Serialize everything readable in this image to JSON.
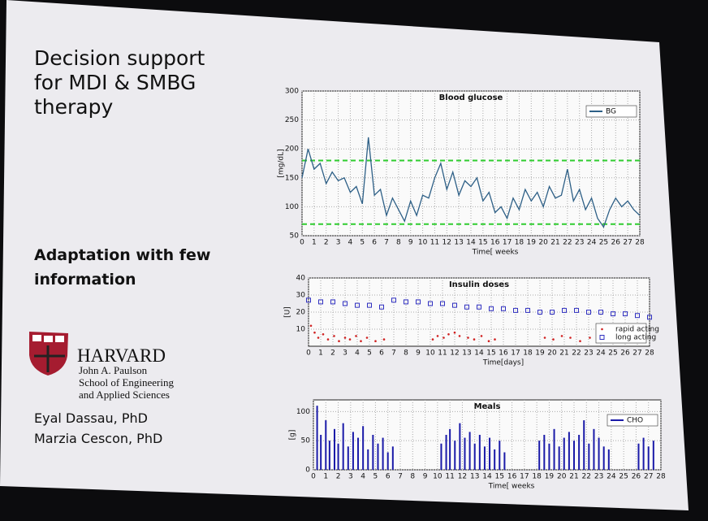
{
  "slide": {
    "title": [
      "Decision support",
      "for MDI & SMBG",
      "therapy"
    ],
    "subtitle": [
      "Adaptation with few",
      "information"
    ],
    "institution": "HARVARD",
    "school": [
      "John A. Paulson",
      "School of Engineering",
      "and Applied Sciences"
    ],
    "authors": [
      "Eyal Dassau, PhD",
      "Marzia Cescon, PhD"
    ]
  },
  "chart_data": [
    {
      "type": "line",
      "title": "Blood glucose",
      "ylabel": "[mg/dL]",
      "xlabel": "Time[ weeks",
      "xlim": [
        0,
        28
      ],
      "xticks": [
        0,
        1,
        2,
        3,
        4,
        5,
        6,
        7,
        8,
        9,
        10,
        11,
        12,
        13,
        14,
        15,
        16,
        17,
        18,
        19,
        20,
        21,
        22,
        23,
        24,
        25,
        26,
        27,
        28
      ],
      "ylim": [
        50,
        300
      ],
      "yticks": [
        50,
        100,
        150,
        200,
        250,
        300
      ],
      "grid": true,
      "legend": "upper right",
      "reference_lines": [
        {
          "value": 180,
          "color": "#2fcc2f"
        },
        {
          "value": 70,
          "color": "#2fcc2f"
        }
      ],
      "series": [
        {
          "name": "BG",
          "color": "#2d5f86",
          "x": [
            0,
            0.5,
            1,
            1.5,
            2,
            2.5,
            3,
            3.5,
            4,
            4.5,
            5,
            5.5,
            6,
            6.5,
            7,
            7.5,
            8,
            8.5,
            9,
            9.5,
            10,
            10.5,
            11,
            11.5,
            12,
            12.5,
            13,
            13.5,
            14,
            14.5,
            15,
            15.5,
            16,
            16.5,
            17,
            17.5,
            18,
            18.5,
            19,
            19.5,
            20,
            20.5,
            21,
            21.5,
            22,
            22.5,
            23,
            23.5,
            24,
            24.5,
            25,
            25.5,
            26,
            26.5,
            27,
            27.5,
            28
          ],
          "values": [
            150,
            200,
            165,
            175,
            140,
            160,
            145,
            150,
            125,
            135,
            105,
            220,
            120,
            130,
            85,
            115,
            95,
            75,
            110,
            85,
            120,
            115,
            150,
            175,
            130,
            160,
            120,
            145,
            135,
            150,
            110,
            125,
            90,
            100,
            80,
            115,
            95,
            130,
            110,
            125,
            100,
            135,
            115,
            120,
            165,
            110,
            130,
            95,
            115,
            80,
            65,
            95,
            115,
            100,
            110,
            95,
            85
          ]
        }
      ]
    },
    {
      "type": "scatter",
      "title": "Insulin doses",
      "ylabel": "[U]",
      "xlabel": "Time[days]",
      "xlim": [
        0,
        28
      ],
      "xticks": [
        0,
        1,
        2,
        3,
        4,
        5,
        6,
        7,
        8,
        9,
        10,
        11,
        12,
        13,
        14,
        15,
        16,
        17,
        18,
        19,
        20,
        21,
        22,
        23,
        24,
        25,
        26,
        27,
        28
      ],
      "ylim": [
        0,
        40
      ],
      "yticks": [
        10,
        20,
        30,
        40
      ],
      "grid": true,
      "legend": "lower right",
      "series": [
        {
          "name": "rapid acting",
          "color": "#d02020",
          "marker": "dot",
          "x": [
            0.2,
            0.5,
            0.8,
            1.2,
            1.6,
            2.1,
            2.5,
            3.0,
            3.4,
            3.9,
            4.3,
            4.8,
            5.5,
            6.2,
            10.2,
            10.6,
            11.1,
            11.5,
            12.0,
            12.4,
            13.1,
            13.6,
            14.2,
            14.8,
            15.3,
            19.4,
            20.1,
            20.8,
            21.5,
            22.3,
            23.1,
            24.0,
            25.2,
            26.1,
            26.9
          ],
          "values": [
            12,
            8,
            5,
            7,
            4,
            6,
            3,
            5,
            4,
            6,
            3,
            5,
            3,
            4,
            4,
            6,
            5,
            7,
            8,
            6,
            5,
            4,
            6,
            3,
            4,
            5,
            4,
            6,
            5,
            3,
            5,
            4,
            3,
            4,
            3
          ]
        },
        {
          "name": "long acting",
          "color": "#3030c0",
          "marker": "square",
          "x": [
            0,
            1,
            2,
            3,
            4,
            5,
            6,
            7,
            8,
            9,
            10,
            11,
            12,
            13,
            14,
            15,
            16,
            17,
            18,
            19,
            20,
            21,
            22,
            23,
            24,
            25,
            26,
            27,
            28
          ],
          "values": [
            27,
            26,
            26,
            25,
            24,
            24,
            23,
            27,
            26,
            26,
            25,
            25,
            24,
            23,
            23,
            22,
            22,
            21,
            21,
            20,
            20,
            21,
            21,
            20,
            20,
            19,
            19,
            18,
            17
          ]
        }
      ]
    },
    {
      "type": "bar",
      "title": "Meals",
      "ylabel": "[g]",
      "xlabel": "Time[ weeks",
      "xlim": [
        0,
        28
      ],
      "xticks": [
        0,
        1,
        2,
        3,
        4,
        5,
        6,
        7,
        8,
        9,
        10,
        11,
        12,
        13,
        14,
        15,
        16,
        17,
        18,
        19,
        20,
        21,
        22,
        23,
        24,
        25,
        26,
        27,
        28
      ],
      "ylim": [
        0,
        120
      ],
      "yticks": [
        0,
        50,
        100
      ],
      "grid": true,
      "legend": "upper right",
      "series": [
        {
          "name": "CHO",
          "color": "#1a1aa8",
          "x": [
            0.3,
            0.6,
            1.0,
            1.3,
            1.7,
            2.0,
            2.4,
            2.8,
            3.2,
            3.6,
            4.0,
            4.4,
            4.8,
            5.2,
            5.6,
            6.0,
            6.4,
            10.3,
            10.7,
            11.0,
            11.4,
            11.8,
            12.2,
            12.6,
            13.0,
            13.4,
            13.8,
            14.2,
            14.6,
            15.0,
            15.4,
            18.2,
            18.6,
            19.0,
            19.4,
            19.8,
            20.2,
            20.6,
            21.0,
            21.4,
            21.8,
            22.2,
            22.6,
            23.0,
            23.4,
            23.8,
            26.2,
            26.6,
            27.0,
            27.4
          ],
          "values": [
            110,
            60,
            85,
            50,
            70,
            45,
            80,
            40,
            65,
            55,
            75,
            35,
            60,
            45,
            55,
            30,
            40,
            45,
            60,
            70,
            50,
            80,
            55,
            65,
            45,
            60,
            40,
            55,
            35,
            50,
            30,
            50,
            60,
            45,
            70,
            40,
            55,
            65,
            50,
            60,
            85,
            45,
            70,
            55,
            40,
            35,
            45,
            55,
            40,
            50
          ]
        }
      ]
    }
  ]
}
